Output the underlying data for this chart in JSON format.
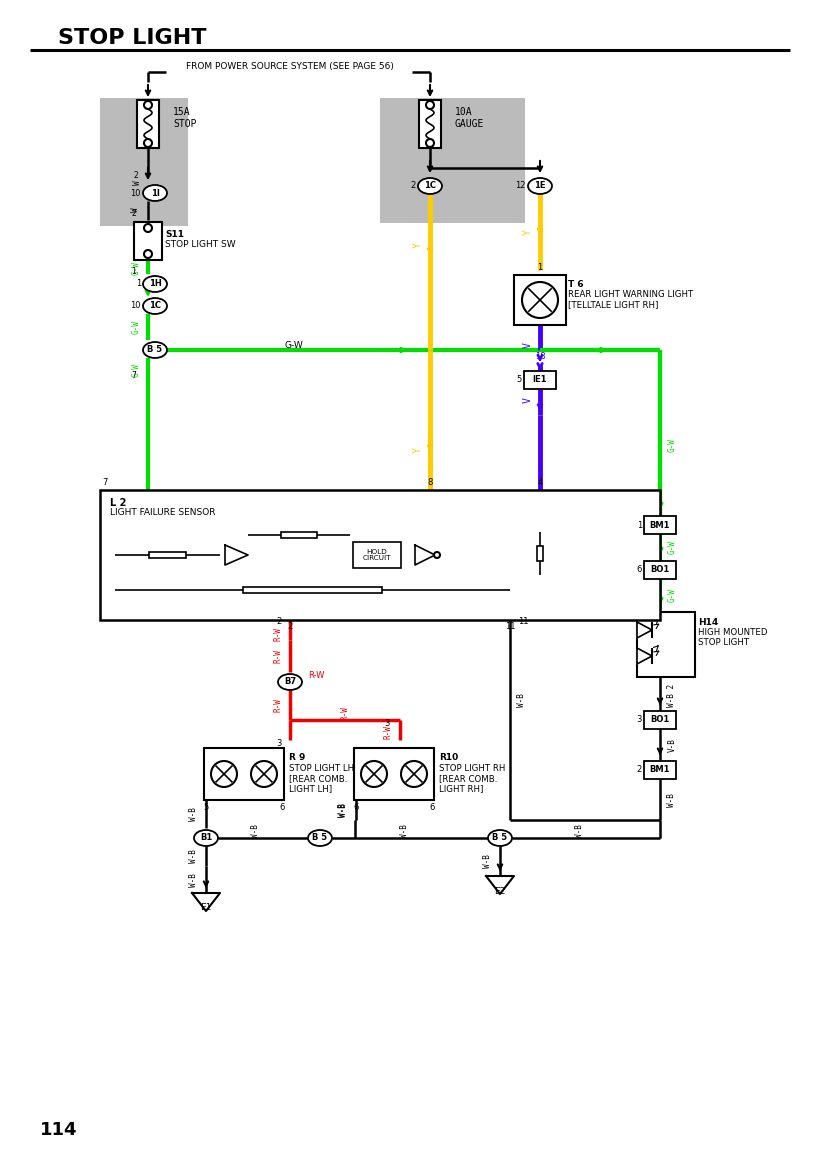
{
  "title": "STOP LIGHT",
  "page_number": "114",
  "bg": "#ffffff",
  "black": "#000000",
  "green": "#00dd00",
  "yellow": "#ffcc00",
  "blue": "#4400ff",
  "red": "#ee0000",
  "gray": "#bbbbbb",
  "power_text": "FROM POWER SOURCE SYSTEM (SEE PAGE 56)",
  "fuse1_txt": "15A\nSTOP",
  "fuse2_txt": "10A\nGAUGE",
  "sw_txt1": "S11",
  "sw_txt2": "STOP LIGHT SW",
  "t6_txt1": "T 6",
  "t6_txt2": "REAR LIGHT WARNING LIGHT",
  "t6_txt3": "[TELLTALE LIGHT RH]",
  "l2_txt1": "L 2",
  "l2_txt2": "LIGHT FAILURE SENSOR",
  "hold_txt": "HOLD\nCIRCUIT",
  "bm1_top_txt": "BM1",
  "bo1_top_txt": "BO1",
  "h14_txt1": "H14",
  "h14_txt2": "HIGH MOUNTED",
  "h14_txt3": "STOP LIGHT",
  "bo1_bot_txt": "BO1",
  "bm1_bot_txt": "BM1",
  "r9_txt1": "R 9",
  "r9_txt2": "STOP LIGHT LH",
  "r9_txt3": "[REAR COMB.",
  "r9_txt4": "LIGHT LH]",
  "r10_txt1": "R10",
  "r10_txt2": "STOP LIGHT RH",
  "r10_txt3": "[REAR COMB.",
  "r10_txt4": "LIGHT RH]"
}
